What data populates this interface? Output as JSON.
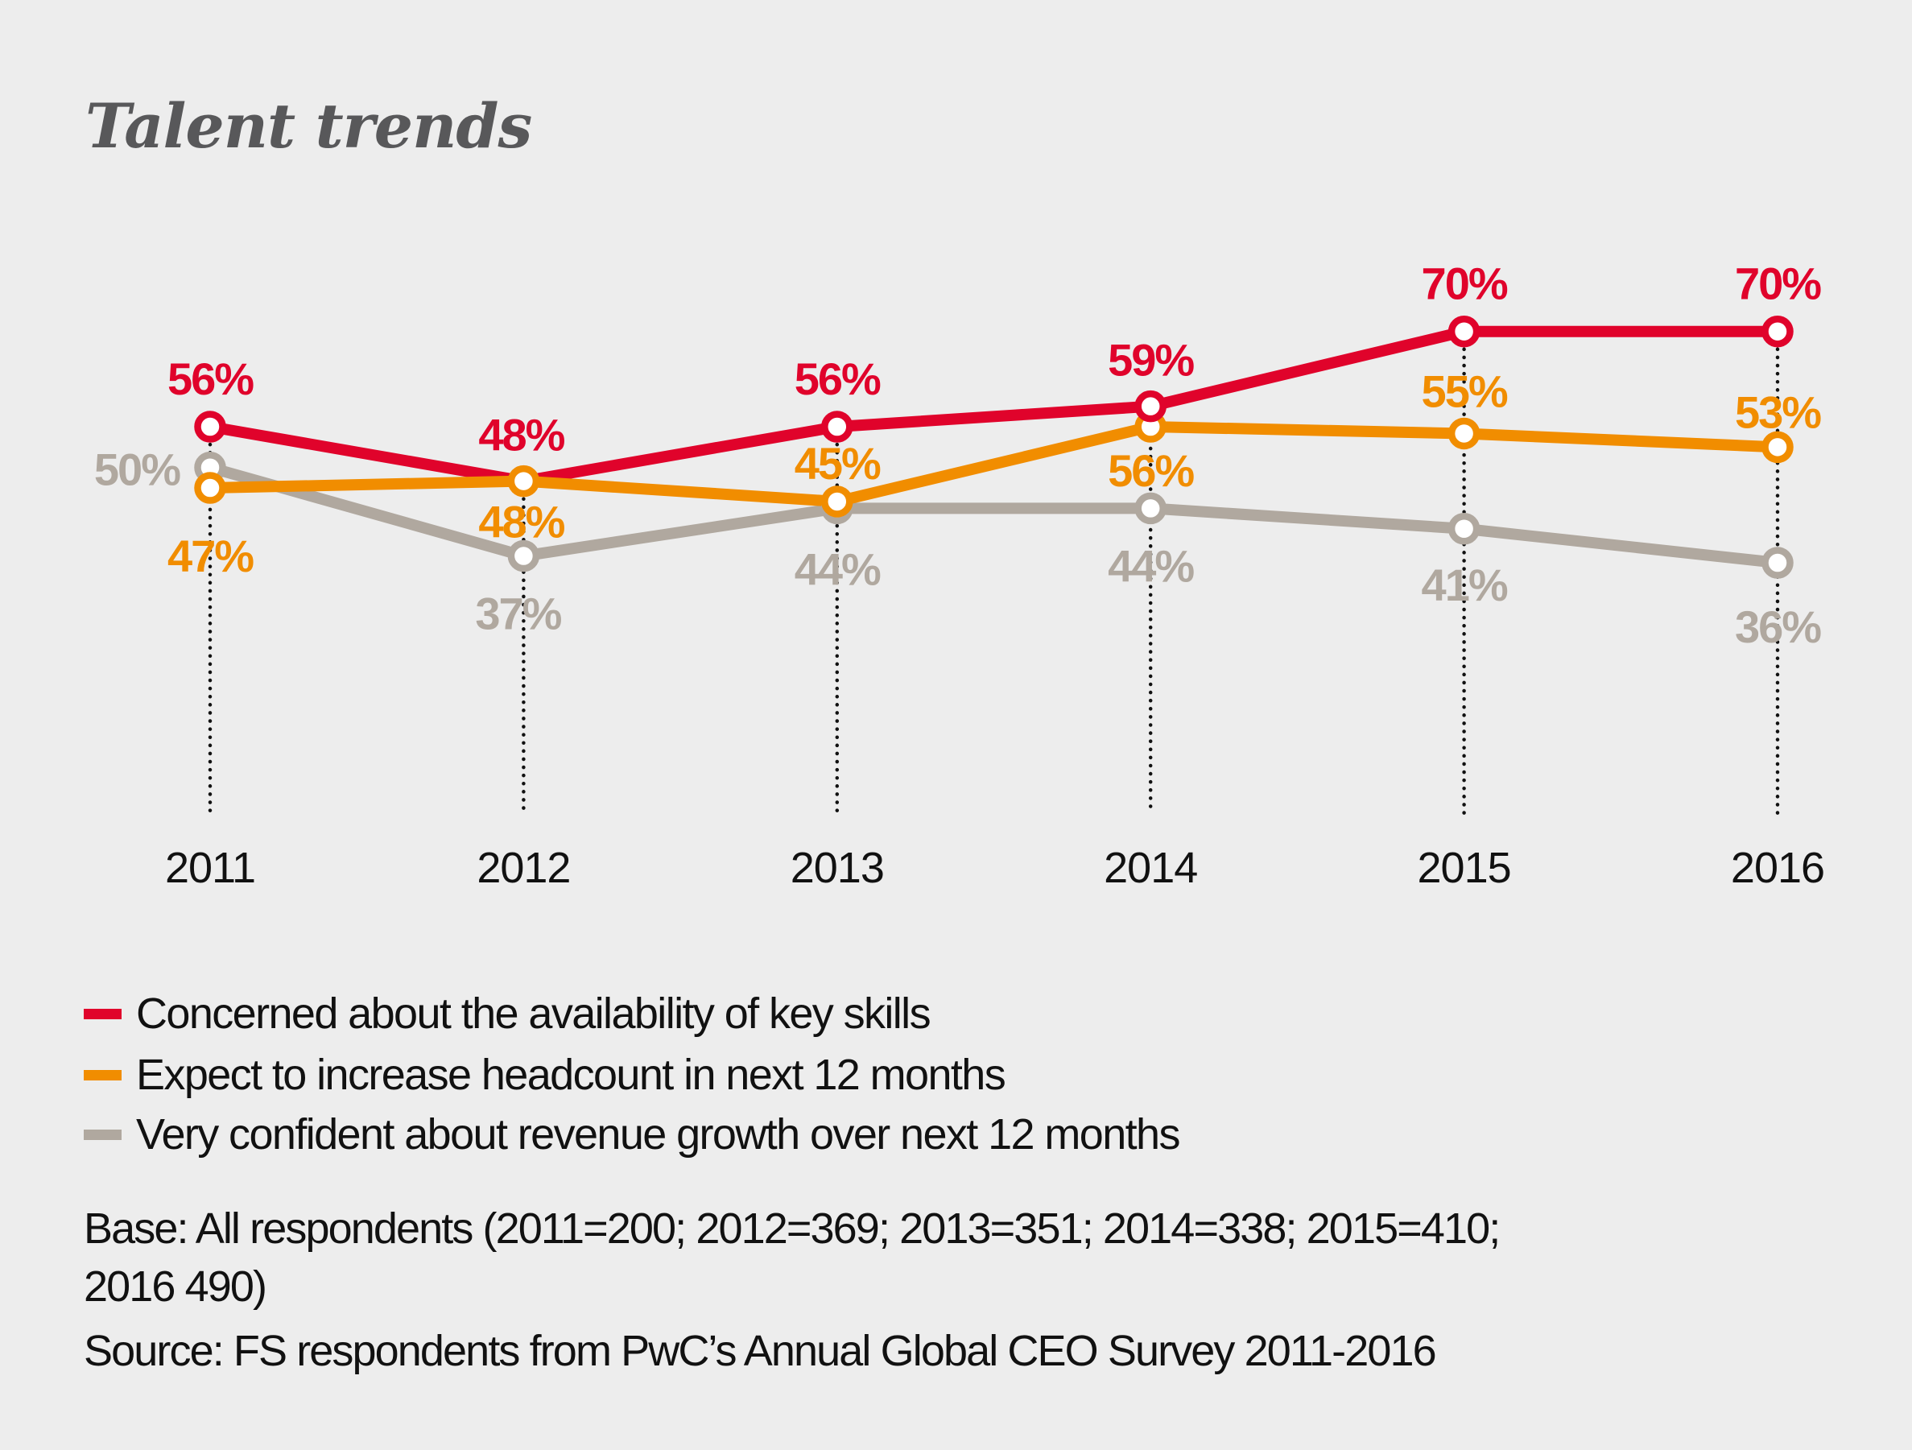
{
  "title": "Talent trends",
  "chart_data": {
    "type": "line",
    "title": "Talent trends",
    "xlabel": "",
    "ylabel": "",
    "categories": [
      "2011",
      "2012",
      "2013",
      "2014",
      "2015",
      "2016"
    ],
    "ylim": [
      0,
      75
    ],
    "grid": false,
    "value_suffix": "%",
    "series": [
      {
        "name": "Concerned about the availability of key skills",
        "color": "#E0032B",
        "values": [
          56,
          48,
          56,
          59,
          70,
          70
        ],
        "labels": [
          "56%",
          "48%",
          "56%",
          "59%",
          "70%",
          "70%"
        ]
      },
      {
        "name": "Expect to increase headcount in next 12 months",
        "color": "#F18D00",
        "values": [
          47,
          48,
          45,
          56,
          55,
          53
        ],
        "labels": [
          "47%",
          "48%",
          "45%",
          "56%",
          "55%",
          "53%"
        ]
      },
      {
        "name": "Very confident about revenue growth over next 12 months",
        "color": "#B0A89F",
        "values": [
          50,
          37,
          44,
          44,
          41,
          36
        ],
        "labels": [
          "50%",
          "37%",
          "44%",
          "44%",
          "41%",
          "36%"
        ]
      }
    ],
    "legend_position": "bottom-left"
  },
  "legend": [
    {
      "label": "Concerned about the availability of key skills",
      "color": "#E0032B"
    },
    {
      "label": "Expect to increase headcount in next 12 months",
      "color": "#F18D00"
    },
    {
      "label": "Very confident about revenue growth over next 12 months",
      "color": "#B0A89F"
    }
  ],
  "notes": {
    "base_line1": "Base: All respondents (2011=200; 2012=369; 2013=351; 2014=338; 2015=410;",
    "base_line2": "2016 490)",
    "source": "Source: FS respondents from PwC’s Annual Global CEO Survey 2011-2016"
  },
  "colors": {
    "background": "#EDEDED",
    "title": "#58585A",
    "axis_text": "#111111",
    "guide_dots": "#111111"
  }
}
